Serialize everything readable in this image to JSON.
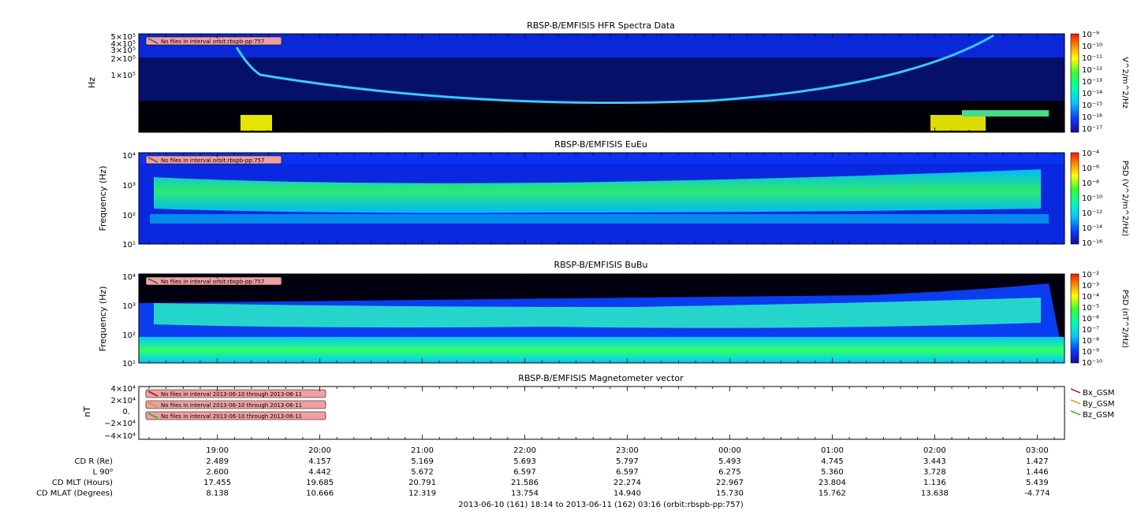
{
  "chart_data": [
    {
      "type": "heatmap",
      "title": "RBSP-B/EMFISIS  HFR Spectra Data",
      "ylabel": "Hz",
      "ytick_labels": [
        "5×10⁵",
        "4×10⁵",
        "3×10⁵",
        "2×10⁵",
        "1×10⁵"
      ],
      "colorbar_label": "V^2/m^2/Hz",
      "colorbar_ticks": [
        "10⁻⁹",
        "10⁻¹⁰",
        "10⁻¹¹",
        "10⁻¹²",
        "10⁻¹³",
        "10⁻¹⁴",
        "10⁻¹⁵",
        "10⁻¹⁶",
        "10⁻¹⁷"
      ],
      "log_scale": true,
      "annotation": "No files in interval orbit:rbspb-pp:757"
    },
    {
      "type": "heatmap",
      "title": "RBSP-B/EMFISIS  EuEu",
      "ylabel": "Frequency (Hz)",
      "ytick_labels": [
        "10⁴",
        "10³",
        "10²",
        "10¹"
      ],
      "colorbar_label": "PSD (V^2/m^2/Hz)",
      "colorbar_ticks": [
        "10⁻⁴",
        "10⁻⁶",
        "10⁻⁸",
        "10⁻¹⁰",
        "10⁻¹²",
        "10⁻¹⁴",
        "10⁻¹⁶"
      ],
      "log_scale": true,
      "annotation": "No files in interval orbit:rbspb-pp:757"
    },
    {
      "type": "heatmap",
      "title": "RBSP-B/EMFISIS  BuBu",
      "ylabel": "Frequency (Hz)",
      "ytick_labels": [
        "10⁴",
        "10³",
        "10²",
        "10¹"
      ],
      "colorbar_label": "PSD (nT^2/Hz)",
      "colorbar_ticks": [
        "10⁻²",
        "10⁻³",
        "10⁻⁴",
        "10⁻⁵",
        "10⁻⁶",
        "10⁻⁷",
        "10⁻⁸",
        "10⁻⁹",
        "10⁻¹⁰"
      ],
      "log_scale": true,
      "annotation": "No files in interval orbit:rbspb-pp:757"
    },
    {
      "type": "line",
      "title": "RBSP-B/EMFISIS  Magnetometer vector",
      "ylabel": "nT",
      "ytick_labels": [
        "4×10⁴",
        "2×10⁴",
        "0.",
        "−2×10⁴",
        "−4×10⁴"
      ],
      "ylim": [
        -40000,
        40000
      ],
      "series": [
        {
          "name": "Bx_GSM",
          "color": "#b22222",
          "values": []
        },
        {
          "name": "By_GSM",
          "color": "#c8a032",
          "values": []
        },
        {
          "name": "Bz_GSM",
          "color": "#32b432",
          "values": []
        }
      ],
      "annotations": [
        "No files in interval 2013-06-10 through 2013-06-11",
        "No files in interval 2013-06-10 through 2013-06-11",
        "No files in interval 2013-06-10 through 2013-06-11"
      ]
    }
  ],
  "x_axis": {
    "time_labels": [
      "19:00",
      "20:00",
      "21:00",
      "22:00",
      "23:00",
      "00:00",
      "01:00",
      "02:00",
      "03:00"
    ],
    "rows": [
      {
        "label": "CD R (Re)",
        "values": [
          "2.489",
          "4.157",
          "5.169",
          "5.693",
          "5.797",
          "5.493",
          "4.745",
          "3.443",
          "1.427"
        ]
      },
      {
        "label": "L 90⁰",
        "values": [
          "2.600",
          "4.442",
          "5.672",
          "6.597",
          "6.597",
          "6.275",
          "5.360",
          "3.728",
          "1.446"
        ]
      },
      {
        "label": "CD MLT (Hours)",
        "values": [
          "17.455",
          "19.685",
          "20.791",
          "21.586",
          "22.274",
          "22.967",
          "23.804",
          "1.136",
          "5.439"
        ]
      },
      {
        "label": "CD MLAT (Degrees)",
        "values": [
          "8.138",
          "10.666",
          "12.319",
          "13.754",
          "14.940",
          "15.730",
          "15.762",
          "13.638",
          "-4.774"
        ]
      }
    ],
    "footer": "2013-06-10 (161) 18:14 to 2013-06-11 (162) 03:16 (orbit:rbspb-pp:757)"
  },
  "colors": {
    "spectrogram_background": "#000010",
    "spectrogram_low": "#0a1ee6",
    "annotation_box": "#f0a0a0"
  }
}
